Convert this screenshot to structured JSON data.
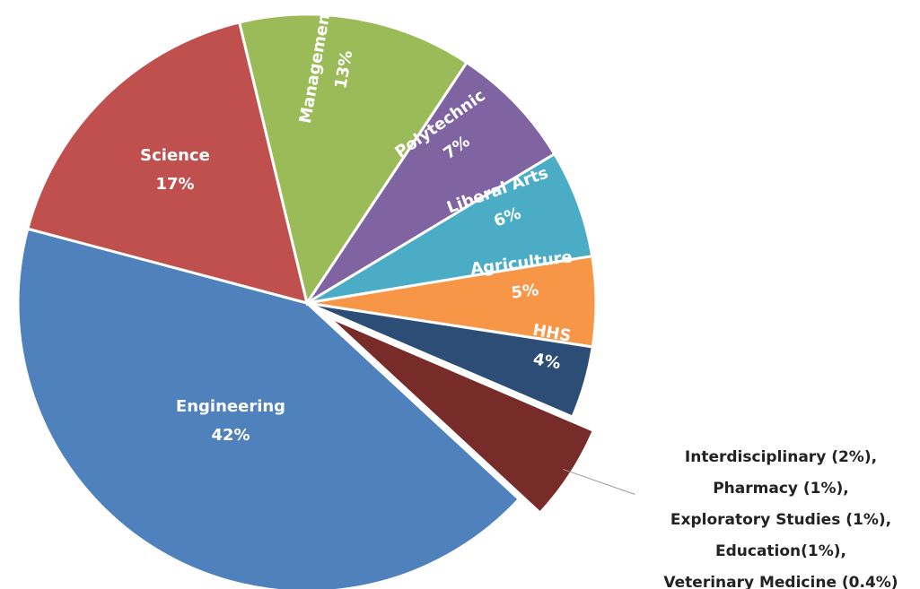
{
  "chart_data": {
    "type": "pie",
    "categories": [
      "Engineering",
      "Science",
      "Management",
      "Polytechnic",
      "Liberal Arts",
      "Agriculture",
      "HHS"
    ],
    "values": [
      42,
      17,
      13,
      7,
      6,
      5,
      4
    ],
    "value_labels": [
      "42%",
      "17%",
      "13%",
      "7%",
      "6%",
      "5%",
      "4%"
    ],
    "colors": [
      "#4f81bd",
      "#c0504d",
      "#9bbb59",
      "#8064a2",
      "#4bacc6",
      "#f79646",
      "#2c4d75"
    ],
    "exploded_group": {
      "color": "#772c2a",
      "items": [
        {
          "label": "Interdisciplinary (2%),",
          "value": 2
        },
        {
          "label": "Pharmacy (1%),",
          "value": 1
        },
        {
          "label": "Exploratory Studies (1%),",
          "value": 1
        },
        {
          "label": "Education(1%),",
          "value": 1
        },
        {
          "label": "Veterinary Medicine (0.4%)",
          "value": 0.4
        }
      ]
    }
  }
}
